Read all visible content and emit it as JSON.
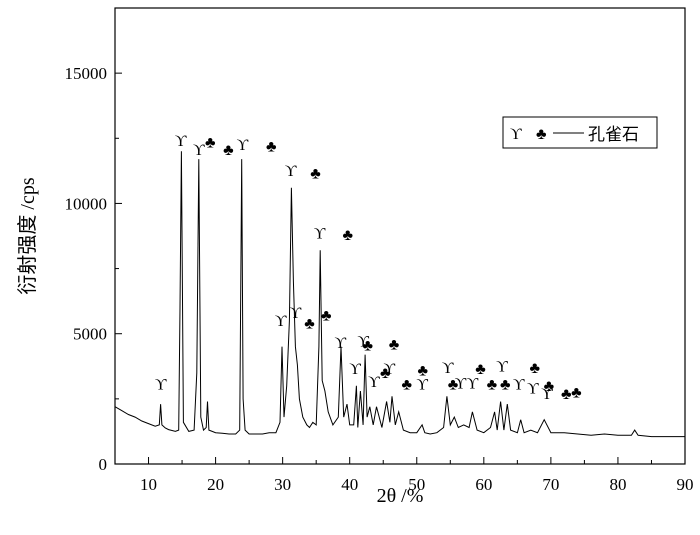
{
  "chart_data": {
    "type": "line",
    "xlabel": "2θ /%",
    "ylabel": "衍射强度 /cps",
    "xlim": [
      5,
      90
    ],
    "ylim": [
      0,
      17500
    ],
    "x_ticks": [
      "10",
      "20",
      "30",
      "40",
      "50",
      "60",
      "70",
      "80",
      "90"
    ],
    "y_ticks": [
      "0",
      "5000",
      "10000",
      "15000"
    ],
    "legend": {
      "position": "right",
      "symbols": [
        "ϒ",
        "♣"
      ],
      "label": "孔雀石"
    },
    "series": [
      {
        "x": [
          5.0,
          6.0,
          7.0,
          8.0,
          9.0,
          10.0,
          11.0,
          11.6,
          11.8,
          12.0,
          12.5,
          13.0,
          14.0,
          14.5,
          14.7,
          14.9,
          15.2,
          16.0,
          16.8,
          17.2,
          17.5,
          17.8,
          18.2,
          18.6,
          18.8,
          19.0,
          19.5,
          20.0,
          21.0,
          22.0,
          23.0,
          23.6,
          23.9,
          24.1,
          24.4,
          25.0,
          26.0,
          27.0,
          28.0,
          29.0,
          29.6,
          29.9,
          30.2,
          30.6,
          31.0,
          31.3,
          31.6,
          31.9,
          32.2,
          32.5,
          33.0,
          33.6,
          34.0,
          34.5,
          35.0,
          35.4,
          35.6,
          35.9,
          36.3,
          36.8,
          37.5,
          38.3,
          38.7,
          39.1,
          39.6,
          40.0,
          40.6,
          41.0,
          41.2,
          41.6,
          42.0,
          42.3,
          42.6,
          43.0,
          43.5,
          44.0,
          44.8,
          45.5,
          46.0,
          46.3,
          46.8,
          47.3,
          48.0,
          49.0,
          50.0,
          50.8,
          51.2,
          52.0,
          53.0,
          54.0,
          54.5,
          55.0,
          55.6,
          56.2,
          57.0,
          57.8,
          58.3,
          59.0,
          60.0,
          61.0,
          61.6,
          62.0,
          62.5,
          63.0,
          63.5,
          64.0,
          65.0,
          65.5,
          66.0,
          67.0,
          68.0,
          69.0,
          70.0,
          72.0,
          74.0,
          76.0,
          78.0,
          80.0,
          82.0,
          82.5,
          83.0,
          85.0,
          87.0,
          89.0,
          90.0
        ],
        "y": [
          2200,
          2050,
          1900,
          1800,
          1650,
          1550,
          1450,
          1500,
          2300,
          1500,
          1380,
          1320,
          1250,
          1300,
          6000,
          12000,
          1600,
          1250,
          1300,
          3500,
          11700,
          1800,
          1300,
          1400,
          2400,
          1300,
          1250,
          1200,
          1180,
          1150,
          1150,
          1300,
          11700,
          2500,
          1300,
          1150,
          1150,
          1150,
          1200,
          1200,
          1600,
          4500,
          1800,
          3000,
          5500,
          10600,
          7000,
          4500,
          3800,
          2500,
          1800,
          1500,
          1400,
          1600,
          1500,
          4500,
          8200,
          3200,
          2800,
          2000,
          1500,
          1800,
          4500,
          1800,
          2300,
          1500,
          1500,
          3000,
          1400,
          2800,
          1500,
          4200,
          1800,
          2200,
          1500,
          2200,
          1400,
          2400,
          1600,
          2600,
          1500,
          2000,
          1300,
          1200,
          1200,
          1500,
          1200,
          1150,
          1200,
          1400,
          2600,
          1500,
          1800,
          1400,
          1500,
          1400,
          2000,
          1300,
          1200,
          1400,
          2000,
          1300,
          2400,
          1300,
          2300,
          1300,
          1200,
          1700,
          1200,
          1300,
          1200,
          1700,
          1200,
          1200,
          1150,
          1100,
          1150,
          1100,
          1100,
          1300,
          1100,
          1050,
          1050,
          1050,
          1050
        ]
      }
    ],
    "annotations": [
      {
        "symbol": "ϒ",
        "x": 11.8,
        "y": 2850
      },
      {
        "symbol": "ϒ",
        "x": 14.8,
        "y": 12200
      },
      {
        "symbol": "ϒ",
        "x": 17.5,
        "y": 11850
      },
      {
        "symbol": "♣",
        "x": 19.2,
        "y": 12150
      },
      {
        "symbol": "ϒ",
        "x": 24.0,
        "y": 12050
      },
      {
        "symbol": "♣",
        "x": 21.9,
        "y": 11850
      },
      {
        "symbol": "♣",
        "x": 28.3,
        "y": 12000
      },
      {
        "symbol": "ϒ",
        "x": 31.2,
        "y": 11050
      },
      {
        "symbol": "♣",
        "x": 34.9,
        "y": 10950
      },
      {
        "symbol": "ϒ",
        "x": 35.5,
        "y": 8650
      },
      {
        "symbol": "♣",
        "x": 39.7,
        "y": 8600
      },
      {
        "symbol": "ϒ",
        "x": 29.7,
        "y": 5300
      },
      {
        "symbol": "ϒ",
        "x": 31.9,
        "y": 5600
      },
      {
        "symbol": "♣",
        "x": 34.0,
        "y": 5200
      },
      {
        "symbol": "♣",
        "x": 36.5,
        "y": 5500
      },
      {
        "symbol": "ϒ",
        "x": 38.6,
        "y": 4450
      },
      {
        "symbol": "ϒ",
        "x": 42.0,
        "y": 4500
      },
      {
        "symbol": "♣",
        "x": 42.7,
        "y": 4350
      },
      {
        "symbol": "♣",
        "x": 46.6,
        "y": 4400
      },
      {
        "symbol": "ϒ",
        "x": 40.8,
        "y": 3450
      },
      {
        "symbol": "ϒ",
        "x": 43.6,
        "y": 2950
      },
      {
        "symbol": "♣",
        "x": 45.3,
        "y": 3300
      },
      {
        "symbol": "ϒ",
        "x": 45.9,
        "y": 3450
      },
      {
        "symbol": "♣",
        "x": 48.5,
        "y": 2850
      },
      {
        "symbol": "♣",
        "x": 50.9,
        "y": 3400
      },
      {
        "symbol": "ϒ",
        "x": 50.8,
        "y": 2850
      },
      {
        "symbol": "ϒ",
        "x": 54.6,
        "y": 3500
      },
      {
        "symbol": "♣",
        "x": 55.4,
        "y": 2850
      },
      {
        "symbol": "ϒ",
        "x": 56.5,
        "y": 2900
      },
      {
        "symbol": "ϒ",
        "x": 58.3,
        "y": 2900
      },
      {
        "symbol": "♣",
        "x": 59.5,
        "y": 3450
      },
      {
        "symbol": "♣",
        "x": 61.2,
        "y": 2850
      },
      {
        "symbol": "ϒ",
        "x": 62.7,
        "y": 3550
      },
      {
        "symbol": "♣",
        "x": 63.2,
        "y": 2850
      },
      {
        "symbol": "ϒ",
        "x": 65.2,
        "y": 2850
      },
      {
        "symbol": "♣",
        "x": 67.6,
        "y": 3500
      },
      {
        "symbol": "ϒ",
        "x": 67.3,
        "y": 2700
      },
      {
        "symbol": "♣",
        "x": 69.7,
        "y": 2800
      },
      {
        "symbol": "ϒ",
        "x": 69.4,
        "y": 2500
      },
      {
        "symbol": "♣",
        "x": 72.3,
        "y": 2500
      },
      {
        "symbol": "♣",
        "x": 73.8,
        "y": 2550
      }
    ]
  }
}
